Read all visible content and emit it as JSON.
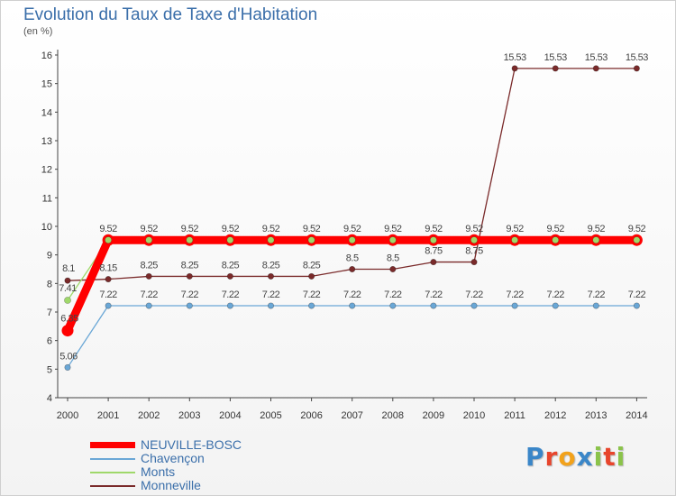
{
  "title": "Evolution du Taux de Taxe d'Habitation",
  "subtitle": "(en %)",
  "logo": {
    "letters": [
      {
        "ch": "P",
        "color": "#3a86c8"
      },
      {
        "ch": "r",
        "color": "#e8452c"
      },
      {
        "ch": "o",
        "color": "#f2a21b"
      },
      {
        "ch": "x",
        "color": "#3a86c8"
      },
      {
        "ch": "i",
        "color": "#8bc34a"
      },
      {
        "ch": "t",
        "color": "#e8452c"
      },
      {
        "ch": "i",
        "color": "#8bc34a"
      }
    ]
  },
  "chart_data": {
    "type": "line",
    "x": [
      2000,
      2001,
      2002,
      2003,
      2004,
      2005,
      2006,
      2007,
      2008,
      2009,
      2010,
      2011,
      2012,
      2013,
      2014
    ],
    "ylim": [
      4,
      16
    ],
    "yticks": [
      4,
      5,
      6,
      7,
      8,
      9,
      10,
      11,
      12,
      13,
      14,
      15,
      16
    ],
    "grid": "none",
    "legend_position": "bottom-left",
    "series": [
      {
        "name": "NEUVILLE-BOSC",
        "color": "#ff0000",
        "values": [
          6.35,
          9.52,
          9.52,
          9.52,
          9.52,
          9.52,
          9.52,
          9.52,
          9.52,
          9.52,
          9.52,
          9.52,
          9.52,
          9.52,
          9.52
        ],
        "labels": [
          "6.35",
          "9.52",
          "9.52",
          "9.52",
          "9.52",
          "9.52",
          "9.52",
          "9.52",
          "9.52",
          "9.52",
          "9.52",
          "9.52",
          "9.52",
          "9.52",
          "9.52"
        ]
      },
      {
        "name": "Chavençon",
        "color": "#6aa7d6",
        "values": [
          5.06,
          7.22,
          7.22,
          7.22,
          7.22,
          7.22,
          7.22,
          7.22,
          7.22,
          7.22,
          7.22,
          7.22,
          7.22,
          7.22,
          7.22
        ],
        "labels": [
          "5.06",
          "7.22",
          "7.22",
          "7.22",
          "7.22",
          "7.22",
          "7.22",
          "7.22",
          "7.22",
          "7.22",
          "7.22",
          "7.22",
          "7.22",
          "7.22",
          "7.22"
        ]
      },
      {
        "name": "Monts",
        "color": "#9fd86a",
        "values": [
          7.41,
          9.52,
          9.52,
          9.52,
          9.52,
          9.52,
          9.52,
          9.52,
          9.52,
          9.52,
          9.52,
          9.52,
          9.52,
          9.52,
          9.52
        ],
        "labels": [
          "7.41",
          "",
          "",
          "",
          "",
          "",
          "",
          "",
          "",
          "",
          "",
          "",
          "",
          "",
          ""
        ]
      },
      {
        "name": "Monneville",
        "color": "#7a2a2a",
        "values": [
          8.1,
          8.15,
          8.25,
          8.25,
          8.25,
          8.25,
          8.25,
          8.5,
          8.5,
          8.75,
          8.75,
          15.53,
          15.53,
          15.53,
          15.53
        ],
        "labels": [
          "8.1",
          "8.15",
          "8.25",
          "8.25",
          "8.25",
          "8.25",
          "8.25",
          "8.5",
          "8.5",
          "8.75",
          "8.75",
          "15.53",
          "15.53",
          "15.53",
          "15.53"
        ]
      }
    ]
  }
}
